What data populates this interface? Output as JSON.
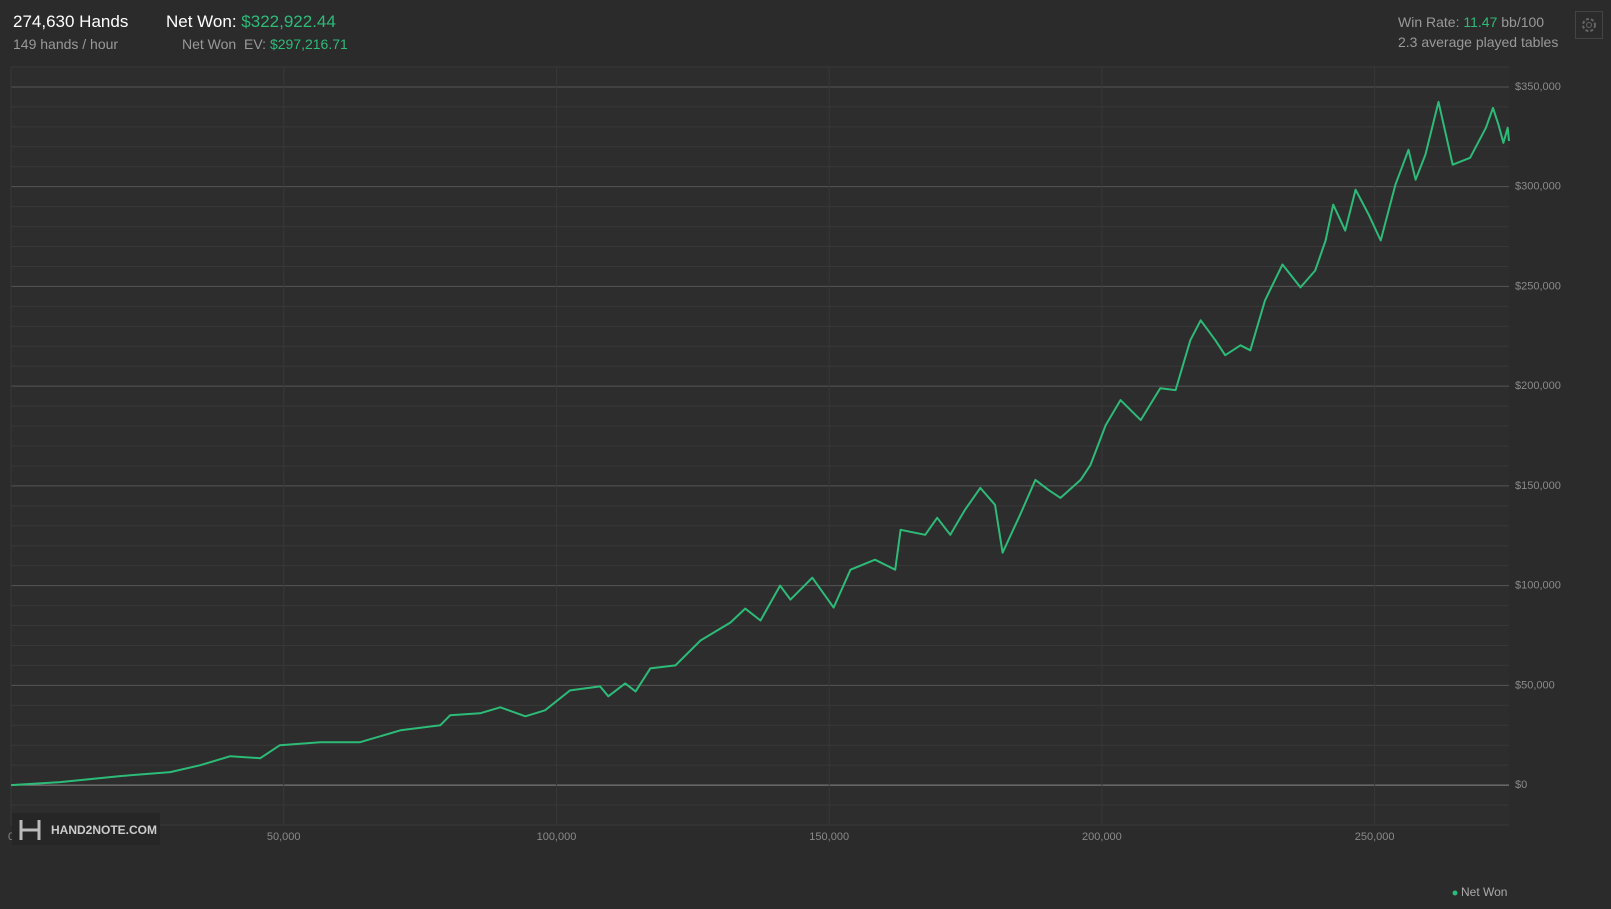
{
  "header": {
    "hands": "274,630 Hands",
    "hands_per_hour": "149 hands / hour",
    "net_won_label": "Net Won:",
    "net_won_value": "$322,922.44",
    "net_won_ev_label": "Net Won  EV:",
    "net_won_ev_value": "$297,216.71",
    "win_rate_label": "Win Rate:",
    "win_rate_value": "11.47",
    "win_rate_unit": "bb/100",
    "tables": "2.3 average played tables",
    "logo": "HAND2NOTE.COM"
  },
  "chart_data": {
    "type": "line",
    "x": [
      0,
      9000,
      20000,
      29200,
      34700,
      40200,
      45700,
      49300,
      56700,
      64000,
      71400,
      78700,
      80500,
      86000,
      89700,
      94300,
      97900,
      102500,
      108000,
      109500,
      112600,
      114500,
      117200,
      121800,
      126400,
      131900,
      134600,
      137400,
      141000,
      142900,
      146900,
      150800,
      153900,
      158400,
      162100,
      163100,
      167600,
      169800,
      172200,
      174900,
      177700,
      180400,
      181800,
      185000,
      187800,
      190200,
      192400,
      196100,
      197900,
      200700,
      203400,
      207100,
      210700,
      213500,
      216200,
      218100,
      220800,
      222600,
      225400,
      227200,
      229900,
      233100,
      236400,
      239100,
      241000,
      242400,
      244600,
      246500,
      248900,
      251100,
      253800,
      256200,
      257500,
      259300,
      261700,
      264300,
      267500,
      270400,
      271700,
      272700,
      273600,
      274400,
      274630
    ],
    "series": [
      {
        "name": "Net Won",
        "color": "#2dbb78",
        "values": [
          0,
          1500,
          4500,
          6500,
          10000,
          14500,
          13500,
          20000,
          21500,
          21500,
          27500,
          30000,
          35000,
          36000,
          39000,
          34500,
          37500,
          47500,
          49500,
          44500,
          51000,
          47000,
          58500,
          60000,
          72500,
          81500,
          88500,
          82500,
          100000,
          93000,
          104000,
          89000,
          108000,
          113000,
          108000,
          128000,
          125500,
          134000,
          125500,
          138000,
          149000,
          140500,
          116500,
          135500,
          153000,
          148000,
          144000,
          153000,
          160500,
          180500,
          193000,
          183000,
          199000,
          198000,
          223000,
          233000,
          223000,
          215500,
          220500,
          218000,
          243000,
          261000,
          249500,
          258000,
          273000,
          291000,
          278000,
          298500,
          286000,
          273000,
          301000,
          318500,
          303500,
          316000,
          342500,
          311000,
          314500,
          329500,
          339500,
          331000,
          322000,
          329500,
          322922.44
        ]
      }
    ],
    "xlim": [
      0,
      274630
    ],
    "ylim": [
      -20000,
      360000
    ],
    "xticks": [
      0,
      {
        "value": 50000,
        "label": "50,000"
      },
      {
        "value": 100000,
        "label": "100,000"
      },
      {
        "value": 150000,
        "label": "150,000"
      },
      {
        "value": 200000,
        "label": "200,000"
      },
      {
        "value": 250000,
        "label": "250,000"
      }
    ],
    "yticks": [
      {
        "value": 0,
        "label": "$0"
      },
      {
        "value": 50000,
        "label": "$50,000"
      },
      {
        "value": 100000,
        "label": "$100,000"
      },
      {
        "value": 150000,
        "label": "$150,000"
      },
      {
        "value": 200000,
        "label": "$200,000"
      },
      {
        "value": 250000,
        "label": "$250,000"
      },
      {
        "value": 300000,
        "label": "$300,000"
      },
      {
        "value": 350000,
        "label": "$350,000"
      }
    ],
    "minor_grid_step": 10000,
    "grid": true,
    "legend": "bottom-right"
  }
}
